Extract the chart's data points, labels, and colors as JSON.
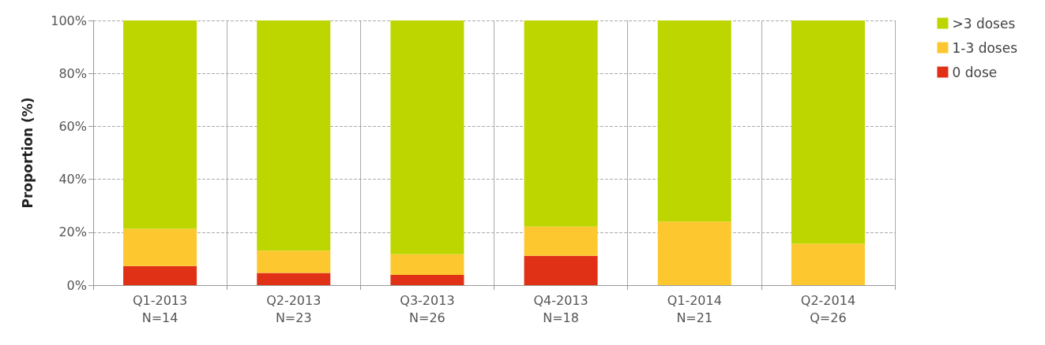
{
  "chart_data": {
    "type": "bar",
    "stacked": true,
    "ylabel": "Proportion (%)",
    "categories": [
      "Q1-2013\nN=14",
      "Q2-2013\nN=23",
      "Q3-2013\nN=26",
      "Q4-2013\nN=18",
      "Q1-2014\nN=21",
      "Q2-2014\nQ=26"
    ],
    "series": [
      {
        "name": "0 dose",
        "color": "#e03016",
        "values": [
          7.2,
          4.6,
          3.9,
          11.1,
          0,
          0
        ]
      },
      {
        "name": "1-3 doses",
        "color": "#fdc82f",
        "values": [
          14.1,
          8.4,
          7.8,
          11.0,
          24.0,
          15.7
        ]
      },
      {
        "name": ">3 doses",
        "color": "#bdd600",
        "values": [
          78.7,
          87.0,
          88.3,
          77.9,
          76.0,
          84.3
        ]
      }
    ],
    "ylim": [
      0,
      100
    ],
    "yticks": [
      {
        "value": 0,
        "label": "0%"
      },
      {
        "value": 20,
        "label": "20%"
      },
      {
        "value": 40,
        "label": "40%"
      },
      {
        "value": 60,
        "label": "60%"
      },
      {
        "value": 80,
        "label": "80%"
      },
      {
        "value": 100,
        "label": "100%"
      }
    ],
    "grid": true,
    "legend": "top right"
  }
}
